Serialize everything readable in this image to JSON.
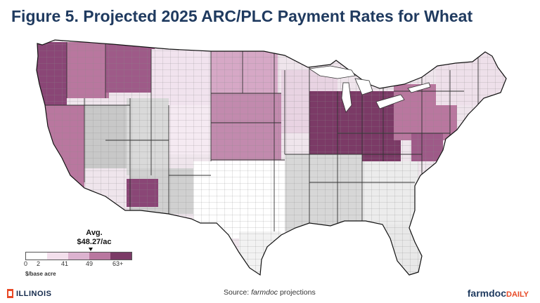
{
  "title": "Figure 5. Projected 2025 ARC/PLC Payment Rates for Wheat",
  "legend": {
    "avg_label": "Avg.",
    "avg_value": "$48.27/ac",
    "tick_0": "0",
    "tick_2": "2",
    "tick_41": "41",
    "tick_49": "49",
    "tick_63": "63+",
    "unit": "$/base acre",
    "colors": [
      "#ffffff",
      "#f3dfec",
      "#dcb2cf",
      "#b9779f",
      "#7b3a66"
    ]
  },
  "source_prefix": "Source: ",
  "source_italic": "farmdoc",
  "source_suffix": " projections",
  "logos": {
    "illinois": "ILLINOIS",
    "farmdoc_main": "farmdoc",
    "farmdoc_daily": "DAILY"
  },
  "no_data_color": "#c8c8c8"
}
